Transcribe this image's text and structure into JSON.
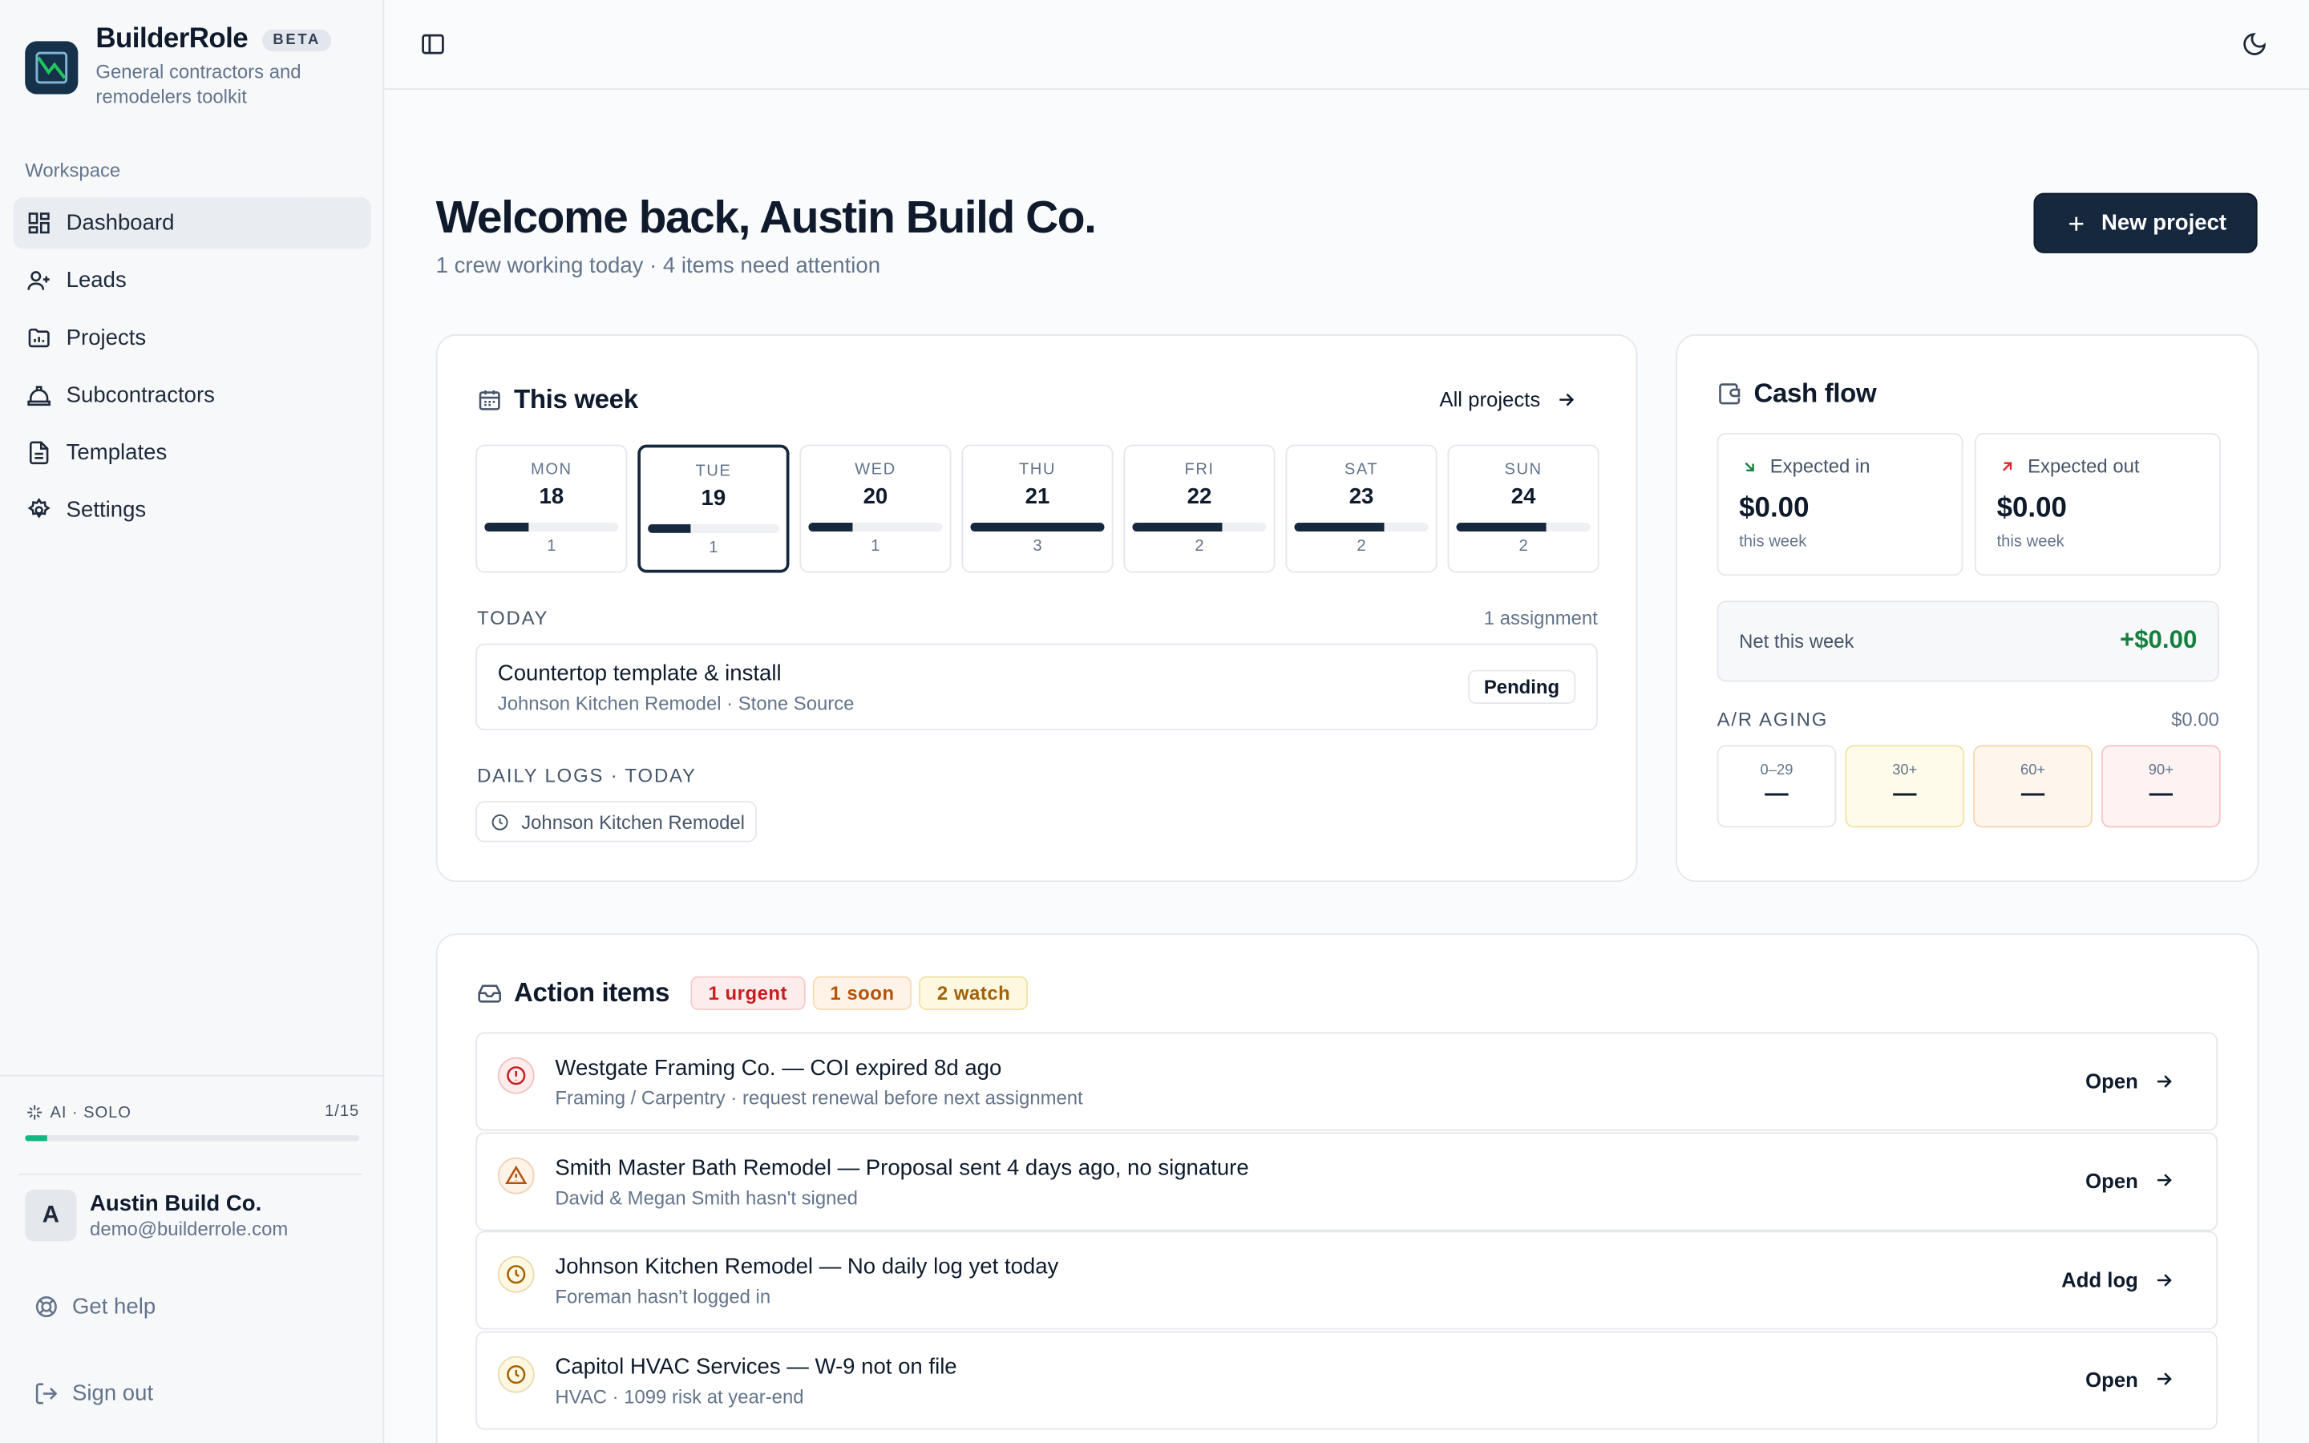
{
  "app": {
    "name": "BuilderRole",
    "badge": "BETA",
    "tagline": "General contractors and remodelers toolkit"
  },
  "sidebar": {
    "section_label": "Workspace",
    "items": [
      {
        "label": "Dashboard",
        "icon": "dashboard-icon",
        "active": true
      },
      {
        "label": "Leads",
        "icon": "user-plus-icon"
      },
      {
        "label": "Projects",
        "icon": "folder-chart-icon"
      },
      {
        "label": "Subcontractors",
        "icon": "hard-hat-icon"
      },
      {
        "label": "Templates",
        "icon": "document-icon"
      },
      {
        "label": "Settings",
        "icon": "gear-icon"
      }
    ],
    "ai": {
      "label": "AI · SOLO",
      "usage": "1/15",
      "used": 1,
      "limit": 15
    },
    "user": {
      "initial": "A",
      "name": "Austin Build Co.",
      "email": "demo@builderrole.com"
    },
    "help_label": "Get help",
    "signout_label": "Sign out"
  },
  "header": {
    "title": "Welcome back, Austin Build Co.",
    "subtitle": "1 crew working today · 4 items need attention",
    "new_project_label": "New project"
  },
  "week": {
    "title": "This week",
    "all_projects_label": "All projects",
    "days": [
      {
        "name": "MON",
        "date": "18",
        "count": "1",
        "fill": 0.33
      },
      {
        "name": "TUE",
        "date": "19",
        "count": "1",
        "fill": 0.33,
        "selected": true
      },
      {
        "name": "WED",
        "date": "20",
        "count": "1",
        "fill": 0.33
      },
      {
        "name": "THU",
        "date": "21",
        "count": "3",
        "fill": 1.0
      },
      {
        "name": "FRI",
        "date": "22",
        "count": "2",
        "fill": 0.67
      },
      {
        "name": "SAT",
        "date": "23",
        "count": "2",
        "fill": 0.67
      },
      {
        "name": "SUN",
        "date": "24",
        "count": "2",
        "fill": 0.67
      }
    ],
    "today_label": "TODAY",
    "today_count": "1 assignment",
    "assignment": {
      "title": "Countertop template & install",
      "subtitle": "Johnson Kitchen Remodel · Stone Source",
      "status": "Pending"
    },
    "logs_label": "DAILY LOGS · TODAY",
    "log_item": "Johnson Kitchen Remodel"
  },
  "cash": {
    "title": "Cash flow",
    "expected_in": {
      "label": "Expected in",
      "value": "$0.00",
      "period": "this week"
    },
    "expected_out": {
      "label": "Expected out",
      "value": "$0.00",
      "period": "this week"
    },
    "net": {
      "label": "Net this week",
      "value": "+$0.00"
    },
    "ar_label": "A/R AGING",
    "ar_total": "$0.00",
    "buckets": [
      {
        "label": "0–29",
        "value": "—",
        "bg": "#ffffff",
        "border": "#e4e7ec"
      },
      {
        "label": "30+",
        "value": "—",
        "bg": "#fefbea",
        "border": "#f3e3a8"
      },
      {
        "label": "60+",
        "value": "—",
        "bg": "#fef6ec",
        "border": "#f5d7ae"
      },
      {
        "label": "90+",
        "value": "—",
        "bg": "#fef2f2",
        "border": "#f5c5c5"
      }
    ]
  },
  "actions": {
    "title": "Action items",
    "pills": [
      {
        "label": "1 urgent",
        "color": "#c81e1e",
        "bg": "#fdecec",
        "border": "#f8cccc"
      },
      {
        "label": "1 soon",
        "color": "#b45309",
        "bg": "#fef3e6",
        "border": "#f8dcb4"
      },
      {
        "label": "2 watch",
        "color": "#a16207",
        "bg": "#fef8e1",
        "border": "#f1e2a6"
      }
    ],
    "items": [
      {
        "title": "Westgate Framing Co. — COI expired 8d ago",
        "subtitle": "Framing / Carpentry · request renewal before next assignment",
        "action": "Open",
        "icon": "alert-circle-icon",
        "tone": "#c81e1e",
        "tone_bg": "#fdecec"
      },
      {
        "title": "Smith Master Bath Remodel — Proposal sent 4 days ago, no signature",
        "subtitle": "David & Megan Smith hasn't signed",
        "action": "Open",
        "icon": "warning-triangle-icon",
        "tone": "#b45309",
        "tone_bg": "#fef3e6"
      },
      {
        "title": "Johnson Kitchen Remodel — No daily log yet today",
        "subtitle": "Foreman hasn't logged in",
        "action": "Add log",
        "icon": "clock-icon",
        "tone": "#a16207",
        "tone_bg": "#fef8e1"
      },
      {
        "title": "Capitol HVAC Services — W-9 not on file",
        "subtitle": "HVAC · 1099 risk at year-end",
        "action": "Open",
        "icon": "clock-icon",
        "tone": "#a16207",
        "tone_bg": "#fef8e1"
      }
    ]
  }
}
